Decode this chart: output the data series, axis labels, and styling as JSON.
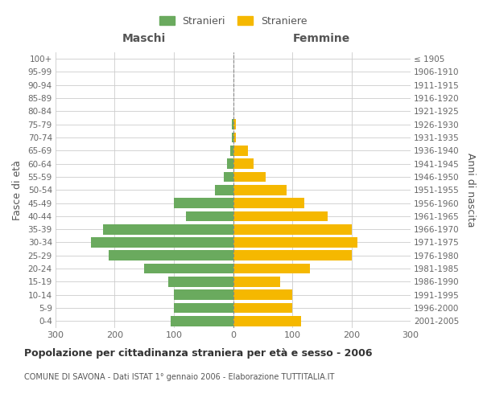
{
  "age_groups": [
    "0-4",
    "5-9",
    "10-14",
    "15-19",
    "20-24",
    "25-29",
    "30-34",
    "35-39",
    "40-44",
    "45-49",
    "50-54",
    "55-59",
    "60-64",
    "65-69",
    "70-74",
    "75-79",
    "80-84",
    "85-89",
    "90-94",
    "95-99",
    "100+"
  ],
  "birth_years": [
    "2001-2005",
    "1996-2000",
    "1991-1995",
    "1986-1990",
    "1981-1985",
    "1976-1980",
    "1971-1975",
    "1966-1970",
    "1961-1965",
    "1956-1960",
    "1951-1955",
    "1946-1950",
    "1941-1945",
    "1936-1940",
    "1931-1935",
    "1926-1930",
    "1921-1925",
    "1916-1920",
    "1911-1915",
    "1906-1910",
    "≤ 1905"
  ],
  "maschi": [
    105,
    100,
    100,
    110,
    150,
    210,
    240,
    220,
    80,
    100,
    30,
    15,
    10,
    5,
    2,
    2,
    0,
    0,
    0,
    0,
    0
  ],
  "femmine": [
    115,
    100,
    100,
    80,
    130,
    200,
    210,
    200,
    160,
    120,
    90,
    55,
    35,
    25,
    5,
    5,
    0,
    0,
    0,
    0,
    0
  ],
  "maschi_color": "#6aaa5e",
  "femmine_color": "#f5b800",
  "title": "Popolazione per cittadinanza straniera per età e sesso - 2006",
  "subtitle": "COMUNE DI SAVONA - Dati ISTAT 1° gennaio 2006 - Elaborazione TUTTITALIA.IT",
  "xlabel_left": "Maschi",
  "xlabel_right": "Femmine",
  "ylabel_left": "Fasce di età",
  "ylabel_right": "Anni di nascita",
  "legend_maschi": "Stranieri",
  "legend_femmine": "Straniere",
  "xlim": 300,
  "background_color": "#ffffff",
  "grid_color": "#cccccc",
  "xticks": [
    -300,
    -200,
    -100,
    0,
    100,
    200,
    300
  ]
}
